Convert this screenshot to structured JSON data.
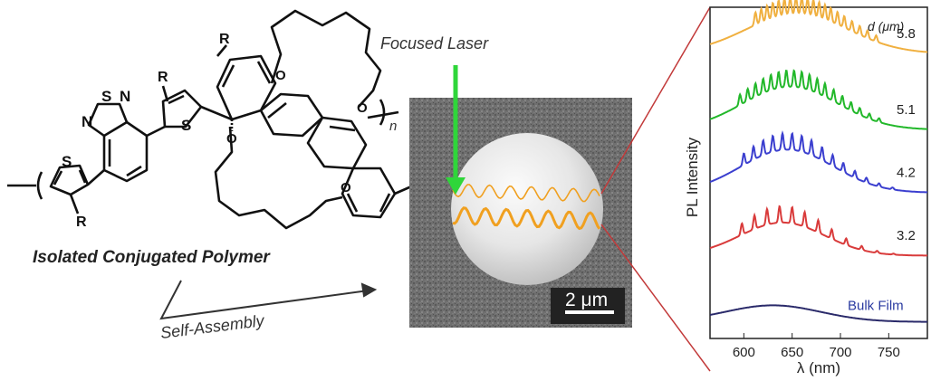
{
  "molecule": {
    "caption": "Isolated Conjugated Polymer",
    "atoms": {
      "s": "S",
      "n": "N",
      "o": "O",
      "r": "R",
      "repeat": "n"
    }
  },
  "arrow_label": "Self-Assembly",
  "micrograph": {
    "laser_label": "Focused Laser",
    "scale_bar_label": "2 μm",
    "colors": {
      "laser": "#2fd63a",
      "ring": "#f0a020"
    }
  },
  "chart_data": {
    "type": "line",
    "x_ticks": [
      600,
      650,
      700,
      750
    ],
    "xlabel": "λ (nm)",
    "ylabel": "PL Intensity",
    "legend_title": "d (μm)",
    "xlim": [
      565,
      790
    ],
    "series": [
      {
        "name": "5.8",
        "color": "#f0b040",
        "baseline": 0.86,
        "amp": 0.12,
        "peak_nm": 655,
        "width_nm": 75,
        "modes": [
          612,
          618,
          624,
          630,
          636,
          642,
          648,
          654,
          660,
          666,
          672,
          678,
          684,
          690,
          697,
          704,
          712,
          720,
          728,
          737
        ]
      },
      {
        "name": "5.1",
        "color": "#22b82a",
        "baseline": 0.63,
        "amp": 0.13,
        "peak_nm": 648,
        "width_nm": 70,
        "modes": [
          596,
          604,
          612,
          620,
          628,
          636,
          644,
          652,
          660,
          668,
          676,
          684,
          693,
          702,
          711,
          720,
          730,
          740
        ]
      },
      {
        "name": "4.2",
        "color": "#3b3fcf",
        "baseline": 0.44,
        "amp": 0.13,
        "peak_nm": 645,
        "width_nm": 68,
        "modes": [
          600,
          610,
          620,
          630,
          640,
          650,
          660,
          670,
          681,
          692,
          703,
          715,
          727,
          740,
          754
        ]
      },
      {
        "name": "3.2",
        "color": "#d93b3b",
        "baseline": 0.25,
        "amp": 0.1,
        "peak_nm": 640,
        "width_nm": 62,
        "modes": [
          598,
          611,
          624,
          637,
          650,
          663,
          677,
          691,
          706,
          722,
          738,
          755
        ]
      },
      {
        "name": "Bulk Film",
        "color": "#2a2a6a",
        "baseline": 0.05,
        "amp": 0.05,
        "peak_nm": 630,
        "width_nm": 70,
        "modes": []
      }
    ]
  }
}
